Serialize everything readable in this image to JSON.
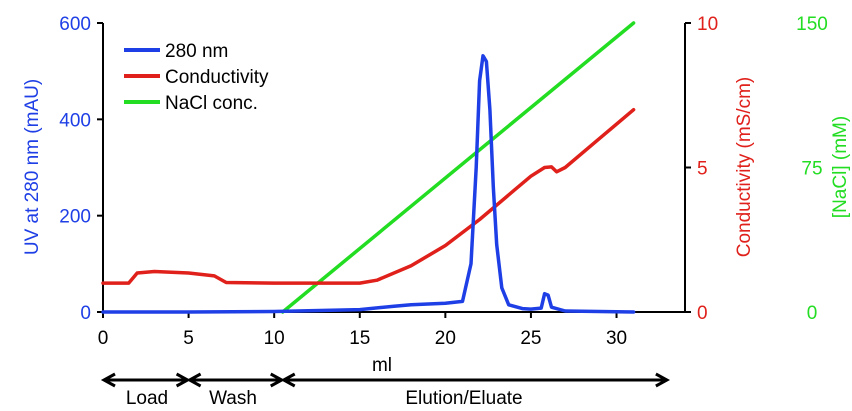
{
  "colors": {
    "uv": "#1f3fe6",
    "conductivity": "#e0201a",
    "nacl": "#22dd22",
    "axis": "#000000"
  },
  "chart_data": {
    "type": "line",
    "xlabel": "ml",
    "xlim": [
      0,
      34
    ],
    "x_ticks": [
      "0",
      "5",
      "10",
      "15",
      "20",
      "25",
      "30"
    ],
    "axes": {
      "left": {
        "label": "UV at 280 nm (mAU)",
        "range": [
          0,
          600
        ],
        "ticks": [
          "0",
          "200",
          "400",
          "600"
        ]
      },
      "right1": {
        "label": "Conductivity (mS/cm)",
        "range": [
          0,
          10
        ],
        "ticks": [
          "0",
          "5",
          "10"
        ]
      },
      "right2": {
        "label": "[NaCl] (mM)",
        "range": [
          0,
          150
        ],
        "ticks": [
          "0",
          "75",
          "150"
        ]
      }
    },
    "legend": {
      "placement": "top-left",
      "entries": [
        "280 nm",
        "Conductivity",
        "NaCl conc."
      ]
    },
    "series": [
      {
        "name": "280 nm",
        "axis": "left",
        "points": [
          [
            0,
            0
          ],
          [
            5,
            0
          ],
          [
            10,
            1
          ],
          [
            15,
            5
          ],
          [
            17,
            12
          ],
          [
            18,
            15
          ],
          [
            20,
            18
          ],
          [
            21,
            22
          ],
          [
            21.5,
            100
          ],
          [
            21.8,
            300
          ],
          [
            22,
            480
          ],
          [
            22.2,
            532
          ],
          [
            22.4,
            520
          ],
          [
            22.6,
            420
          ],
          [
            22.8,
            260
          ],
          [
            23,
            140
          ],
          [
            23.3,
            50
          ],
          [
            23.7,
            15
          ],
          [
            24.5,
            7
          ],
          [
            25,
            6
          ],
          [
            25.6,
            8
          ],
          [
            25.8,
            38
          ],
          [
            26,
            35
          ],
          [
            26.2,
            10
          ],
          [
            27,
            2
          ],
          [
            31,
            0
          ]
        ]
      },
      {
        "name": "Conductivity",
        "axis": "right1",
        "points": [
          [
            0,
            1.0
          ],
          [
            1.5,
            1.0
          ],
          [
            2,
            1.35
          ],
          [
            3,
            1.4
          ],
          [
            5,
            1.35
          ],
          [
            6.5,
            1.25
          ],
          [
            7.2,
            1.02
          ],
          [
            10,
            1.0
          ],
          [
            15,
            1.0
          ],
          [
            16,
            1.1
          ],
          [
            18,
            1.6
          ],
          [
            20,
            2.3
          ],
          [
            22,
            3.2
          ],
          [
            24,
            4.2
          ],
          [
            25,
            4.7
          ],
          [
            25.8,
            5.0
          ],
          [
            26.2,
            5.02
          ],
          [
            26.5,
            4.85
          ],
          [
            27,
            5.0
          ],
          [
            29,
            6.0
          ],
          [
            31,
            7.0
          ]
        ]
      },
      {
        "name": "NaCl conc.",
        "axis": "right2",
        "points": [
          [
            10.5,
            0
          ],
          [
            31,
            150
          ]
        ]
      }
    ],
    "phases": [
      {
        "label": "Load",
        "range": [
          0,
          5
        ]
      },
      {
        "label": "Wash",
        "range": [
          5,
          10.5
        ]
      },
      {
        "label": "Elution/Eluate",
        "range": [
          10.5,
          33
        ]
      }
    ]
  }
}
